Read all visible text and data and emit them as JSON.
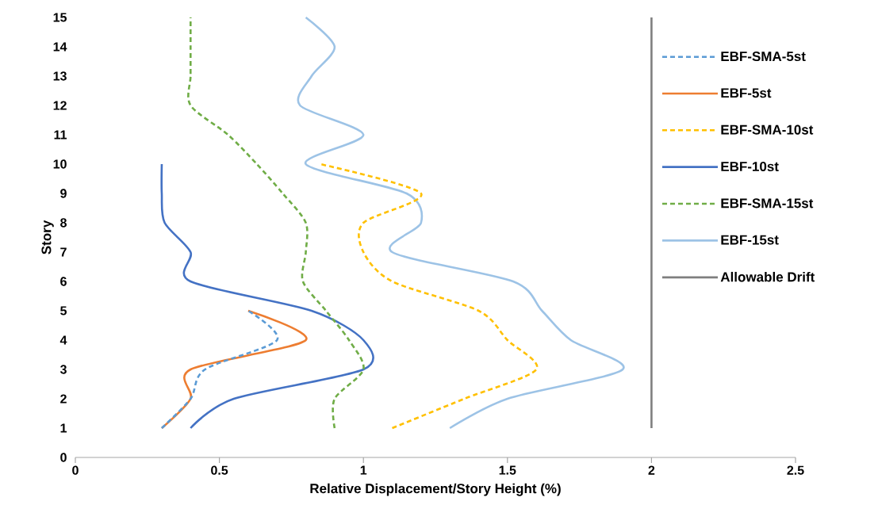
{
  "chart_data": {
    "type": "line",
    "xlabel": "Relative Displacement/Story Height  (%)",
    "ylabel": "Story",
    "xlim": [
      0,
      2.5
    ],
    "ylim": [
      0,
      15
    ],
    "xticks": [
      0,
      0.5,
      1,
      1.5,
      2,
      2.5
    ],
    "yticks": [
      0,
      1,
      2,
      3,
      4,
      5,
      6,
      7,
      8,
      9,
      10,
      11,
      12,
      13,
      14,
      15
    ],
    "grid": false,
    "legend": "right",
    "series": [
      {
        "name": "EBF-SMA-5st",
        "color": "#5b9bd5",
        "line_style": "dashed",
        "x": [
          0.3,
          0.4,
          0.45,
          0.7,
          0.6
        ],
        "values": [
          1,
          2,
          3,
          4,
          5
        ]
      },
      {
        "name": "EBF-5st",
        "color": "#ed7d31",
        "line_style": "solid",
        "x": [
          0.3,
          0.4,
          0.4,
          0.8,
          0.6
        ],
        "values": [
          1,
          2,
          3,
          4,
          5
        ]
      },
      {
        "name": "EBF-SMA-10st",
        "color": "#ffc000",
        "line_style": "dashed",
        "x": [
          1.1,
          1.35,
          1.6,
          1.5,
          1.4,
          1.1,
          1.0,
          1.0,
          1.2,
          0.85
        ],
        "values": [
          1,
          2,
          3,
          4,
          5,
          6,
          7,
          8,
          9,
          10
        ]
      },
      {
        "name": "EBF-10st",
        "color": "#4472c4",
        "line_style": "solid",
        "x": [
          0.4,
          0.55,
          1.0,
          1.0,
          0.82,
          0.4,
          0.4,
          0.31,
          0.3,
          0.3
        ],
        "values": [
          1,
          2,
          3,
          4,
          5,
          6,
          7,
          8,
          9,
          10
        ]
      },
      {
        "name": "EBF-SMA-15st",
        "color": "#70ad47",
        "line_style": "dashed",
        "x": [
          0.9,
          0.9,
          1.0,
          0.95,
          0.87,
          0.79,
          0.8,
          0.8,
          0.72,
          0.63,
          0.53,
          0.4,
          0.4,
          0.4,
          0.4
        ],
        "values": [
          1,
          2,
          3,
          4,
          5,
          6,
          7,
          8,
          9,
          10,
          11,
          12,
          13,
          14,
          15
        ]
      },
      {
        "name": "EBF-15st",
        "color": "#9dc3e6",
        "line_style": "solid",
        "x": [
          1.3,
          1.5,
          1.9,
          1.72,
          1.62,
          1.52,
          1.1,
          1.2,
          1.15,
          0.8,
          1.0,
          0.78,
          0.82,
          0.9,
          0.8
        ],
        "values": [
          1,
          2,
          3,
          4,
          5,
          6,
          7,
          8,
          9,
          10,
          11,
          12,
          13,
          14,
          15
        ]
      },
      {
        "name": "Allowable Drift",
        "color": "#7f7f7f",
        "line_style": "solid",
        "x": [
          2,
          2
        ],
        "values": [
          1,
          15
        ]
      }
    ]
  }
}
